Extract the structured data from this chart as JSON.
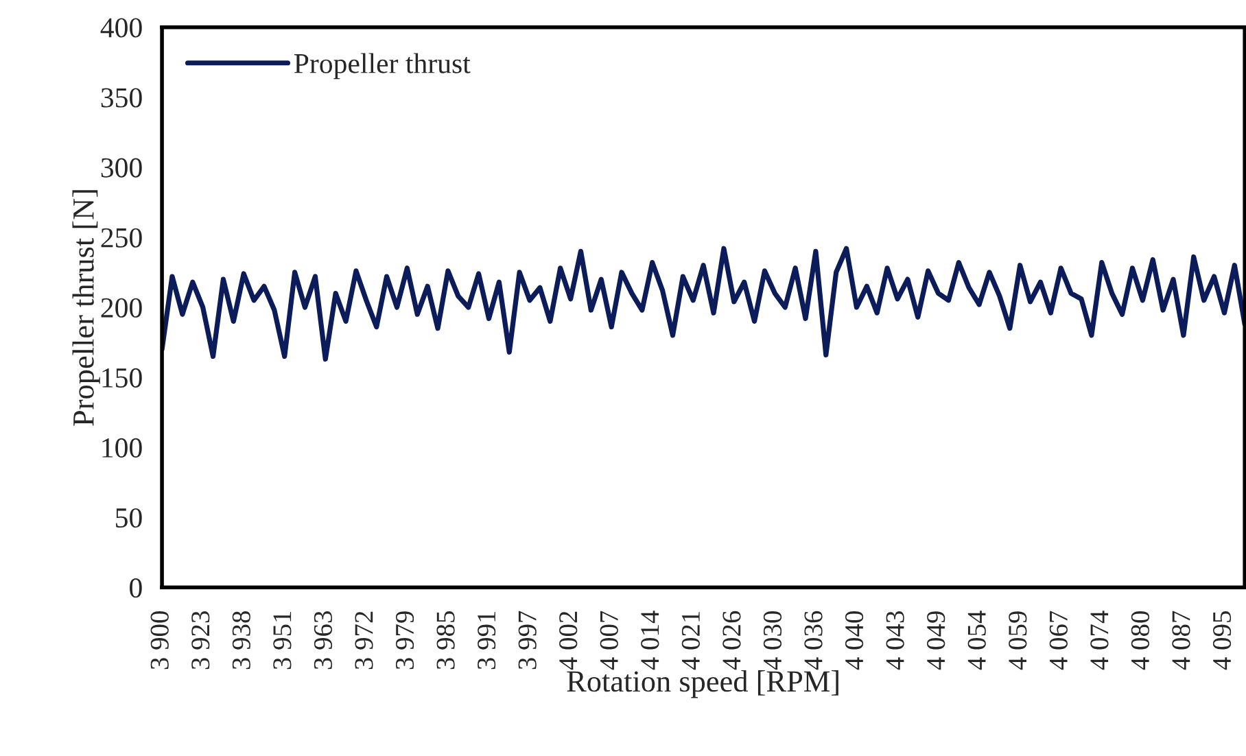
{
  "chart_data": {
    "type": "line",
    "xlabel": "Rotation speed [RPM]",
    "ylabel": "Propeller thrust [N]",
    "categories": [
      "3 900",
      null,
      null,
      null,
      "3 923",
      null,
      null,
      null,
      "3 938",
      null,
      null,
      null,
      "3 951",
      null,
      null,
      null,
      "3 963",
      null,
      null,
      null,
      "3 972",
      null,
      null,
      null,
      "3 979",
      null,
      null,
      null,
      "3 985",
      null,
      null,
      null,
      "3 991",
      null,
      null,
      null,
      "3 997",
      null,
      null,
      null,
      "4 002",
      null,
      null,
      null,
      "4 007",
      null,
      null,
      null,
      "4 014",
      null,
      null,
      null,
      "4 021",
      null,
      null,
      null,
      "4 026",
      null,
      null,
      null,
      "4 030",
      null,
      null,
      null,
      "4 036",
      null,
      null,
      null,
      "4 040",
      null,
      null,
      null,
      "4 043",
      null,
      null,
      null,
      "4 049",
      null,
      null,
      null,
      "4 054",
      null,
      null,
      null,
      "4 059",
      null,
      null,
      null,
      "4 067",
      null,
      null,
      null,
      "4 074",
      null,
      null,
      null,
      "4 080",
      null,
      null,
      null,
      "4 087",
      null,
      null,
      null,
      "4 095",
      null,
      null
    ],
    "series": [
      {
        "name": "Propeller thrust",
        "color": "#0c1c5a",
        "values": [
          170,
          222,
          195,
          218,
          200,
          165,
          220,
          190,
          224,
          205,
          215,
          198,
          165,
          225,
          200,
          222,
          163,
          210,
          190,
          226,
          205,
          186,
          222,
          200,
          228,
          195,
          215,
          185,
          226,
          208,
          200,
          224,
          192,
          218,
          168,
          225,
          205,
          214,
          190,
          228,
          206,
          240,
          198,
          220,
          186,
          225,
          210,
          198,
          232,
          212,
          180,
          222,
          205,
          230,
          196,
          242,
          204,
          218,
          190,
          226,
          210,
          200,
          228,
          192,
          240,
          166,
          225,
          242,
          200,
          215,
          196,
          228,
          206,
          220,
          193,
          226,
          210,
          205,
          232,
          214,
          202,
          225,
          208,
          185,
          230,
          204,
          218,
          196,
          228,
          210,
          206,
          180,
          232,
          210,
          195,
          228,
          205,
          234,
          198,
          220,
          180,
          236,
          205,
          222,
          196,
          230,
          188
        ]
      }
    ],
    "ylim": [
      0,
      400
    ],
    "yticks": [
      0,
      50,
      100,
      150,
      200,
      250,
      300,
      350,
      400
    ],
    "grid": false,
    "legend": "top left",
    "line_style": "solid",
    "marker": "none"
  }
}
